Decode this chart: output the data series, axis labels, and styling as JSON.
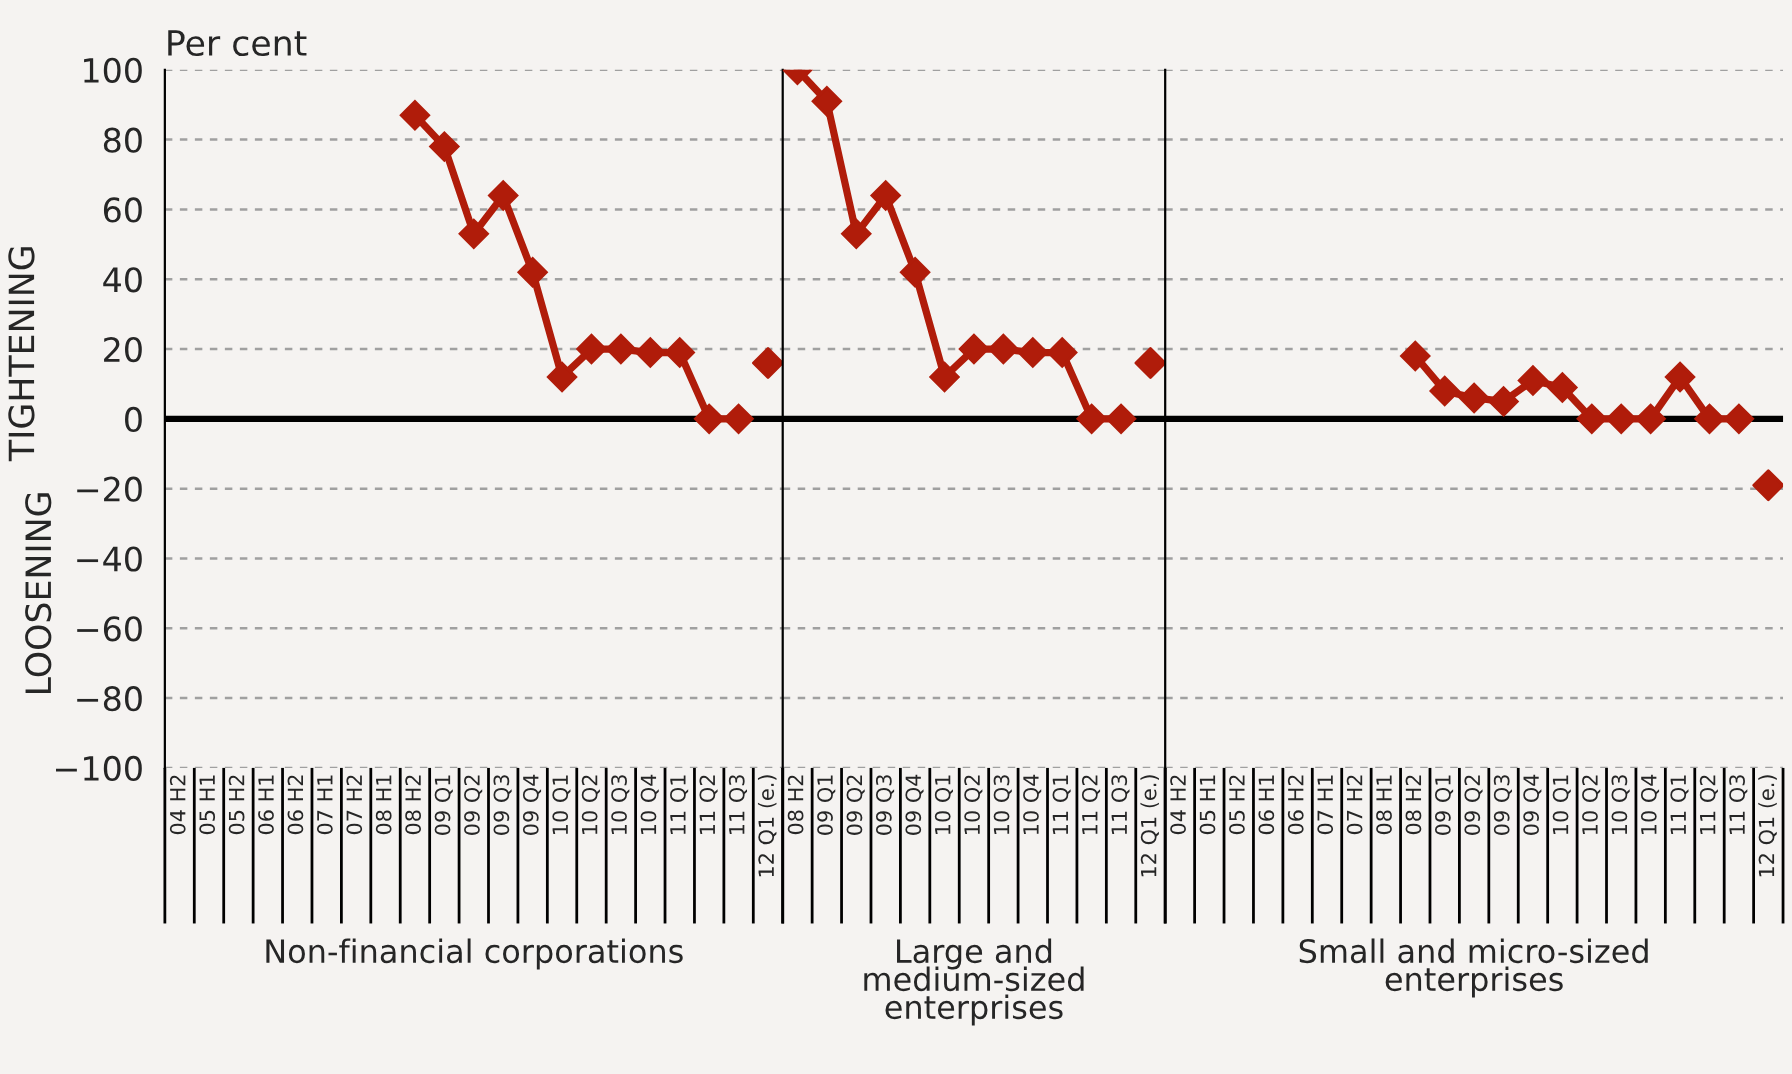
{
  "chart_data": [
    {
      "type": "line",
      "ylabel": "TIGHTENING",
      "xlabel": "Non-financial corporations",
      "annotations": [
        "Per cent",
        "LOOSENING"
      ],
      "categories": [
        "04 H2",
        "05 H1",
        "05 H2",
        "06 H1",
        "06 H2",
        "07 H1",
        "07 H2",
        "08 H1",
        "08 H2",
        "09 Q1",
        "09 Q2",
        "09 Q3",
        "09 Q4",
        "10 Q1",
        "10 Q2",
        "10 Q3",
        "10 Q4",
        "11 Q1",
        "11 Q2",
        "11 Q3",
        "12 Q1 (e.)"
      ],
      "series": [
        {
          "type": "line",
          "color": "#b01c0a",
          "values": [
            null,
            null,
            null,
            null,
            null,
            null,
            null,
            null,
            87,
            78,
            53,
            64,
            42,
            12,
            20,
            20,
            19,
            19,
            0,
            0,
            null
          ]
        },
        {
          "type": "scatter",
          "color": "#b01c0a",
          "values": [
            null,
            null,
            null,
            null,
            null,
            null,
            null,
            null,
            null,
            null,
            null,
            null,
            null,
            null,
            null,
            null,
            null,
            null,
            null,
            null,
            16
          ]
        }
      ],
      "ylim": [
        -100,
        100
      ],
      "yticks": [
        {
          "value": -100,
          "label": "−100"
        },
        {
          "value": -80,
          "label": "−80"
        },
        {
          "value": -60,
          "label": "−60"
        },
        {
          "value": -40,
          "label": "−40"
        },
        {
          "value": -20,
          "label": "−20"
        },
        0,
        20,
        40,
        60,
        80,
        100
      ],
      "grid": "y",
      "marker": "diamond",
      "line_style": "solid",
      "ref_lines": [
        {
          "axis": "y",
          "value": 0,
          "color": "#000000"
        }
      ]
    },
    {
      "type": "line",
      "xlabel": "Large and\nmedium-sized\nenterprises",
      "categories": [
        "08 H2",
        "09 Q1",
        "09 Q2",
        "09 Q3",
        "09 Q4",
        "10 Q1",
        "10 Q2",
        "10 Q3",
        "10 Q4",
        "11 Q1",
        "11 Q2",
        "11 Q3",
        "12 Q1 (e.)"
      ],
      "series": [
        {
          "type": "line",
          "color": "#b01c0a",
          "values": [
            100,
            91,
            53,
            64,
            42,
            12,
            20,
            20,
            19,
            19,
            0,
            0,
            null
          ]
        },
        {
          "type": "scatter",
          "color": "#b01c0a",
          "values": [
            null,
            null,
            null,
            null,
            null,
            null,
            null,
            null,
            null,
            null,
            null,
            null,
            16
          ]
        }
      ],
      "ylim": [
        -100,
        100
      ],
      "yticks": [
        -100,
        -80,
        -60,
        -40,
        -20,
        0,
        20,
        40,
        60,
        80,
        100
      ],
      "tick_labels": "x",
      "grid": "y",
      "marker": "diamond",
      "line_style": "solid",
      "ref_lines": [
        {
          "axis": "y",
          "value": 0,
          "color": "#000000"
        }
      ]
    },
    {
      "type": "line",
      "xlabel": "Small and micro-sized\nenterprises",
      "categories": [
        "04 H2",
        "05 H1",
        "05 H2",
        "06 H1",
        "06 H2",
        "07 H1",
        "07 H2",
        "08 H1",
        "08 H2",
        "09 Q1",
        "09 Q2",
        "09 Q3",
        "09 Q4",
        "10 Q1",
        "10 Q2",
        "10 Q3",
        "10 Q4",
        "11 Q1",
        "11 Q2",
        "11 Q3",
        "12 Q1 (e.)"
      ],
      "series": [
        {
          "type": "line",
          "color": "#b01c0a",
          "values": [
            null,
            null,
            null,
            null,
            null,
            null,
            null,
            null,
            18,
            8,
            6,
            5,
            11,
            9,
            0,
            0,
            0,
            12,
            0,
            0,
            null
          ]
        },
        {
          "type": "scatter",
          "color": "#b01c0a",
          "values": [
            null,
            null,
            null,
            null,
            null,
            null,
            null,
            null,
            null,
            null,
            null,
            null,
            null,
            null,
            null,
            null,
            null,
            null,
            null,
            null,
            -19
          ]
        }
      ],
      "ylim": [
        -100,
        100
      ],
      "yticks": [
        -100,
        -80,
        -60,
        -40,
        -20,
        0,
        20,
        40,
        60,
        80,
        100
      ],
      "tick_labels": "x",
      "grid": "y",
      "marker": "diamond",
      "line_style": "solid",
      "ref_lines": [
        {
          "axis": "y",
          "value": 0,
          "color": "#000000"
        }
      ]
    }
  ]
}
